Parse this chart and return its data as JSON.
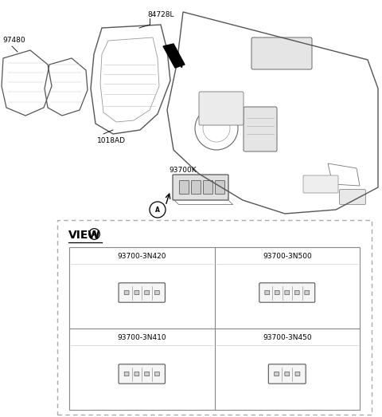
{
  "bg_color": "#ffffff",
  "label_84728L": "84728L",
  "label_97480": "97480",
  "label_1018AD": "1018AD",
  "label_93700K": "93700K",
  "view_label": "VIEW",
  "circle_label": "A",
  "grid_parts": [
    {
      "label": "93700-3N420",
      "num_buttons": 4,
      "col": 0,
      "row": 1
    },
    {
      "label": "93700-3N500",
      "num_buttons": 5,
      "col": 1,
      "row": 1
    },
    {
      "label": "93700-3N410",
      "num_buttons": 4,
      "col": 0,
      "row": 0
    },
    {
      "label": "93700-3N450",
      "num_buttons": 3,
      "col": 1,
      "row": 0
    }
  ],
  "font_color": "#000000",
  "line_color": "#555555",
  "dashed_color": "#aaaaaa",
  "label_fontsize": 6.5,
  "part_label_fontsize": 7.0,
  "view_fontsize": 10,
  "cell_fontsize": 6.5
}
